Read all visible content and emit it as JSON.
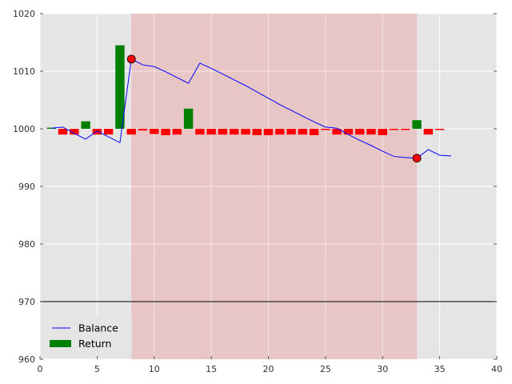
{
  "chart_data": {
    "type": "bar",
    "title": "",
    "xlabel": "",
    "ylabel": "",
    "xlim": [
      0,
      40
    ],
    "ylim": [
      960,
      1020
    ],
    "xticks": [
      0,
      5,
      10,
      15,
      20,
      25,
      30,
      35,
      40
    ],
    "yticks": [
      960,
      970,
      980,
      990,
      1000,
      1010,
      1020
    ],
    "grid": true,
    "legend_position": "lower-left",
    "shaded_region": {
      "x_start": 8,
      "x_end": 33,
      "color": "#e8c6c6"
    },
    "reference_line": {
      "y": 970,
      "color": "#000000"
    },
    "balance": {
      "name": "Balance",
      "color": "#0000ff",
      "x": [
        1,
        2,
        3,
        4,
        5,
        6,
        7,
        8,
        9,
        10,
        11,
        12,
        13,
        14,
        15,
        16,
        17,
        18,
        19,
        20,
        21,
        22,
        23,
        24,
        25,
        26,
        27,
        28,
        29,
        30,
        31,
        32,
        33,
        34,
        35,
        36
      ],
      "y": [
        1000.1,
        1000.3,
        999.2,
        998.2,
        999.6,
        998.6,
        997.6,
        1012.1,
        1011.1,
        1010.8,
        1009.9,
        1008.9,
        1007.9,
        1011.4,
        1010.5,
        1009.5,
        1008.5,
        1007.5,
        1006.4,
        1005.3,
        1004.2,
        1003.2,
        1002.2,
        1001.2,
        1000.3,
        1000.1,
        999.0,
        998.0,
        997.1,
        996.1,
        995.2,
        995.0,
        994.9,
        996.4,
        995.4,
        995.3
      ]
    },
    "returns": {
      "name": "Return",
      "positive_color": "#008000",
      "negative_color": "#ff0000",
      "x": [
        1,
        2,
        3,
        4,
        5,
        6,
        7,
        8,
        9,
        10,
        11,
        12,
        13,
        14,
        15,
        16,
        17,
        18,
        19,
        20,
        21,
        22,
        23,
        24,
        25,
        26,
        27,
        28,
        29,
        30,
        31,
        32,
        33,
        34,
        35
      ],
      "values": [
        0.2,
        -1.0,
        -1.0,
        1.3,
        -1.0,
        -1.0,
        14.5,
        -1.0,
        -0.3,
        -0.9,
        -1.1,
        -1.0,
        3.5,
        -1.0,
        -1.0,
        -1.0,
        -1.0,
        -1.0,
        -1.1,
        -1.1,
        -1.0,
        -1.0,
        -1.0,
        -1.1,
        -0.2,
        -1.0,
        -1.0,
        -1.0,
        -1.0,
        -1.1,
        -0.2,
        -0.2,
        1.5,
        -1.0,
        -0.2
      ]
    },
    "markers": [
      {
        "x": 8,
        "y": 1012.1,
        "color": "#ff0000"
      },
      {
        "x": 33,
        "y": 994.9,
        "color": "#ff0000"
      }
    ],
    "legend": [
      {
        "label": "Balance",
        "kind": "line",
        "color": "#0000ff"
      },
      {
        "label": "Return",
        "kind": "patch",
        "color": "#008000"
      }
    ]
  }
}
